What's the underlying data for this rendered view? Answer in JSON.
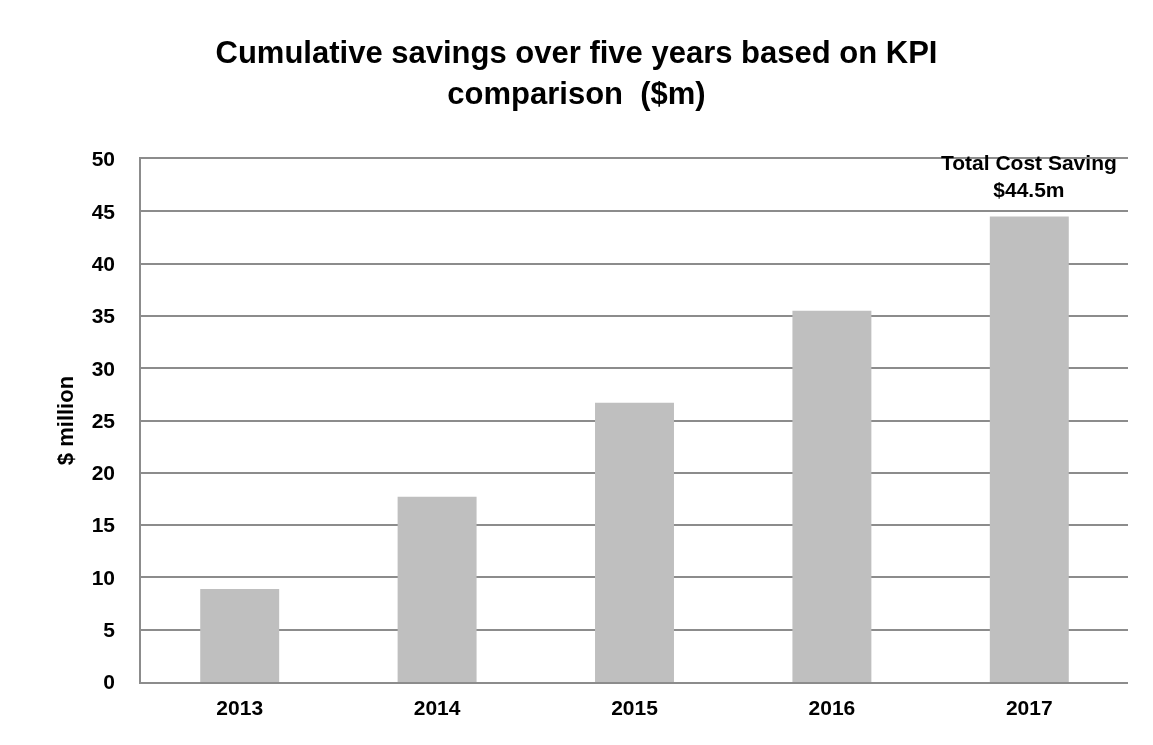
{
  "chart_data": {
    "type": "bar",
    "title": "Cumulative savings over five years based on KPI\ncomparison  ($m)",
    "ylabel": "$ million",
    "categories": [
      "2013",
      "2014",
      "2015",
      "2016",
      "2017"
    ],
    "values": [
      8.9,
      17.7,
      26.7,
      35.5,
      44.5
    ],
    "color": "#bfbfbf",
    "ylim": [
      0,
      50
    ],
    "yticks": [
      0,
      5,
      10,
      15,
      20,
      25,
      30,
      35,
      40,
      45,
      50
    ],
    "grid": "y",
    "annotations": [
      {
        "text": "Total Cost Saving\n$44.5m",
        "x": "2017",
        "y": 44.5
      }
    ]
  }
}
